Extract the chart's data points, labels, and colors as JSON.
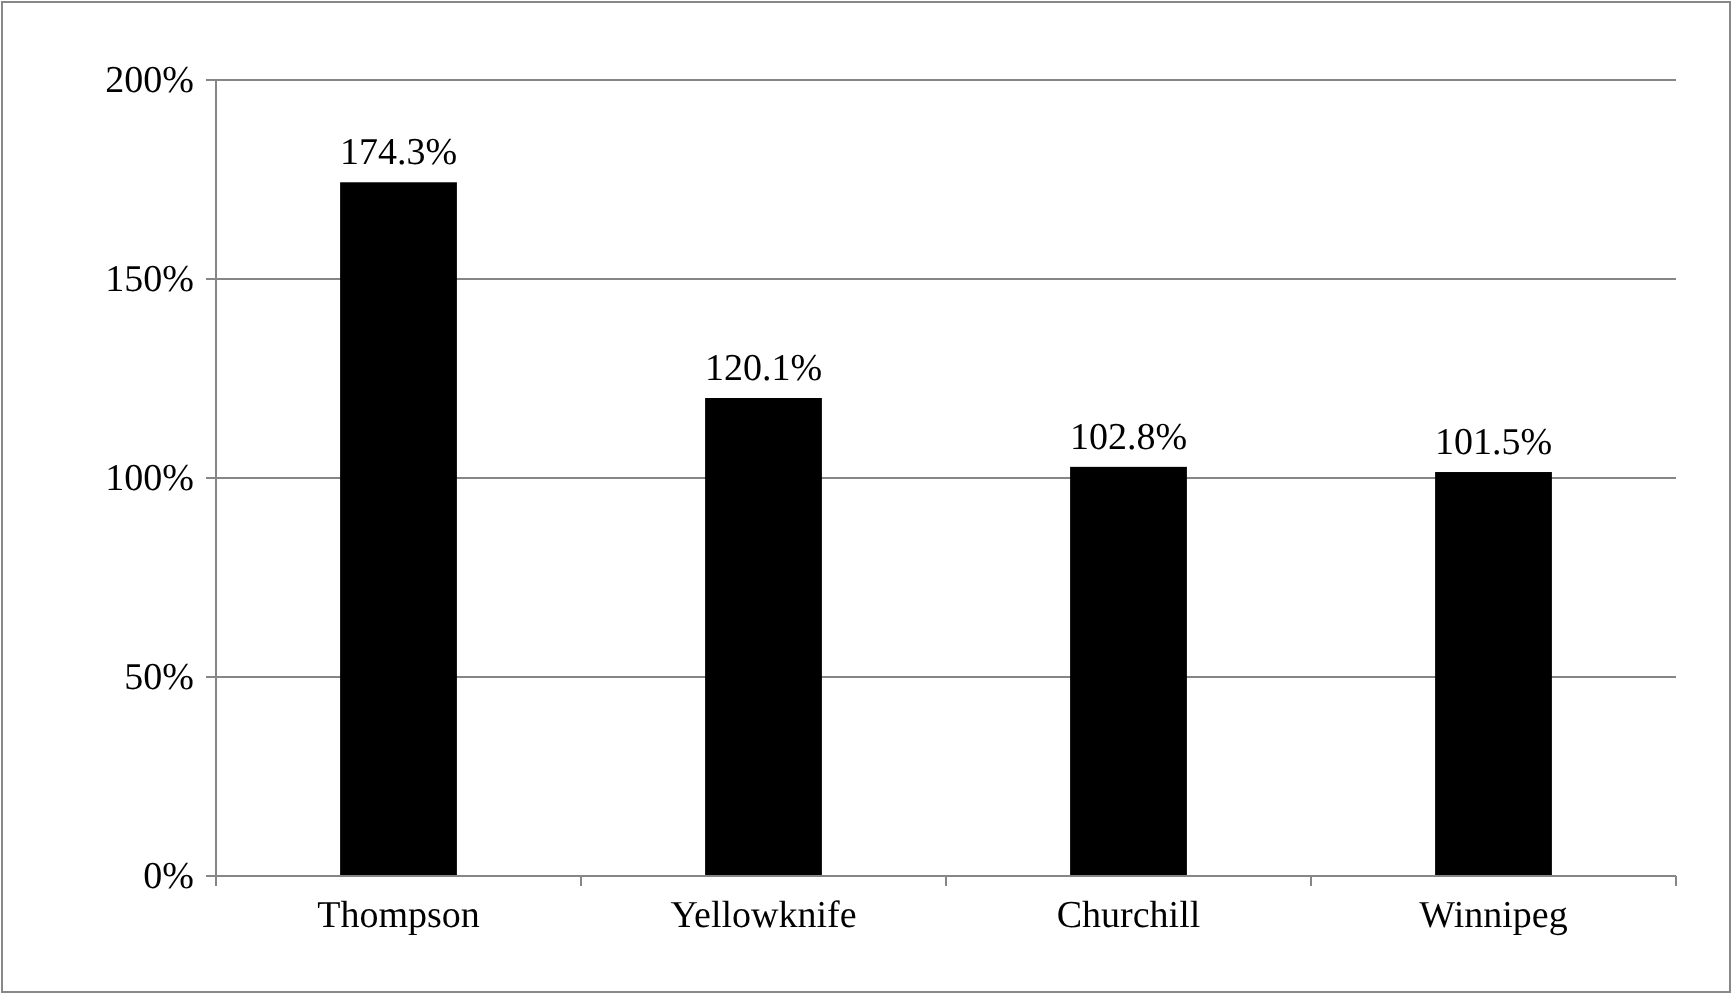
{
  "chart_data": {
    "type": "bar",
    "categories": [
      "Thompson",
      "Yellowknife",
      "Churchill",
      "Winnipeg"
    ],
    "values": [
      174.3,
      120.1,
      102.8,
      101.5
    ],
    "value_labels": [
      "174.3%",
      "120.1%",
      "102.8%",
      "101.5%"
    ],
    "color": "#000000",
    "ylim": [
      0,
      200
    ],
    "yticks": [
      {
        "value": 0,
        "label": "0%"
      },
      {
        "value": 50,
        "label": "50%"
      },
      {
        "value": 100,
        "label": "100%"
      },
      {
        "value": 150,
        "label": "150%"
      },
      {
        "value": 200,
        "label": "200%"
      }
    ],
    "grid": "y"
  }
}
